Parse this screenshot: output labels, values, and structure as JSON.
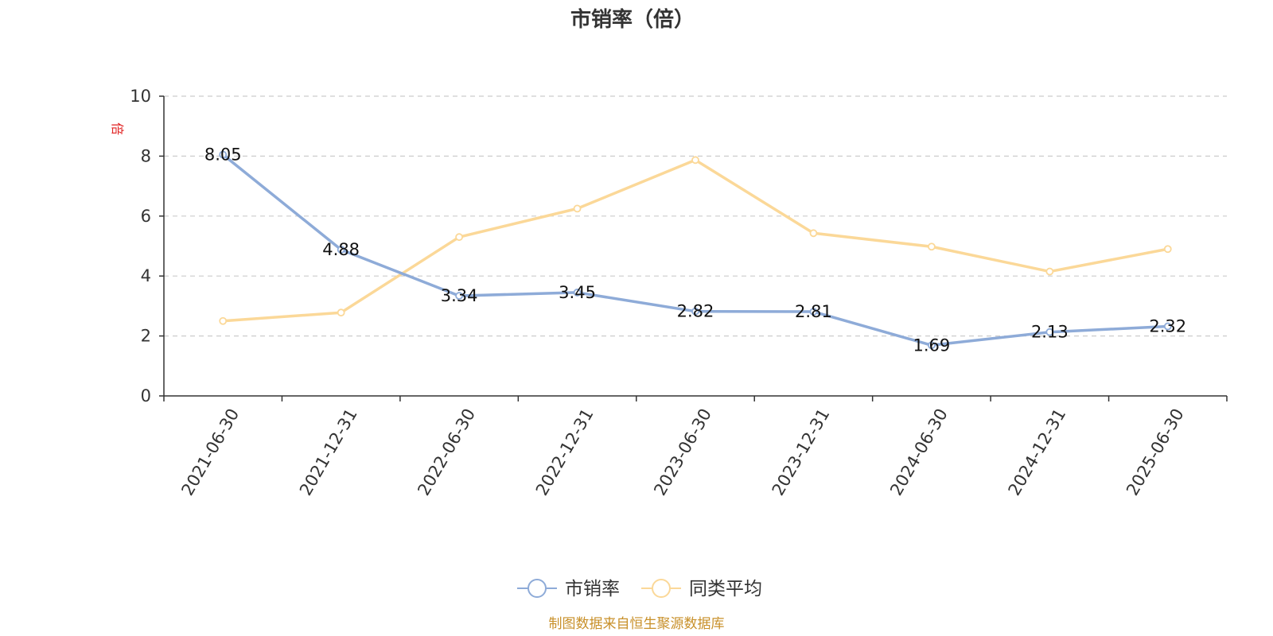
{
  "chart_data": {
    "type": "line",
    "title": "市销率（倍）",
    "y_unit": "倍",
    "categories": [
      "2021-06-30",
      "2021-12-31",
      "2022-06-30",
      "2022-12-31",
      "2023-06-30",
      "2023-12-31",
      "2024-06-30",
      "2024-12-31",
      "2025-06-30"
    ],
    "ylim": [
      0,
      10
    ],
    "yticks": [
      0,
      2,
      4,
      6,
      8,
      10
    ],
    "grid": true,
    "legend_position": "bottom-center",
    "series": [
      {
        "name": "市销率",
        "color": "#8eabd8",
        "values": [
          8.05,
          4.88,
          3.34,
          3.45,
          2.82,
          2.81,
          1.69,
          2.13,
          2.32
        ],
        "labels": [
          "8.05",
          "4.88",
          "3.34",
          "3.45",
          "2.82",
          "2.81",
          "1.69",
          "2.13",
          "2.32"
        ],
        "show_labels": true
      },
      {
        "name": "同类平均",
        "color": "#fbd898",
        "values": [
          2.5,
          2.78,
          5.3,
          6.25,
          7.87,
          5.43,
          4.98,
          4.15,
          4.9
        ],
        "show_labels": false
      }
    ],
    "source": "制图数据来自恒生聚源数据库"
  }
}
